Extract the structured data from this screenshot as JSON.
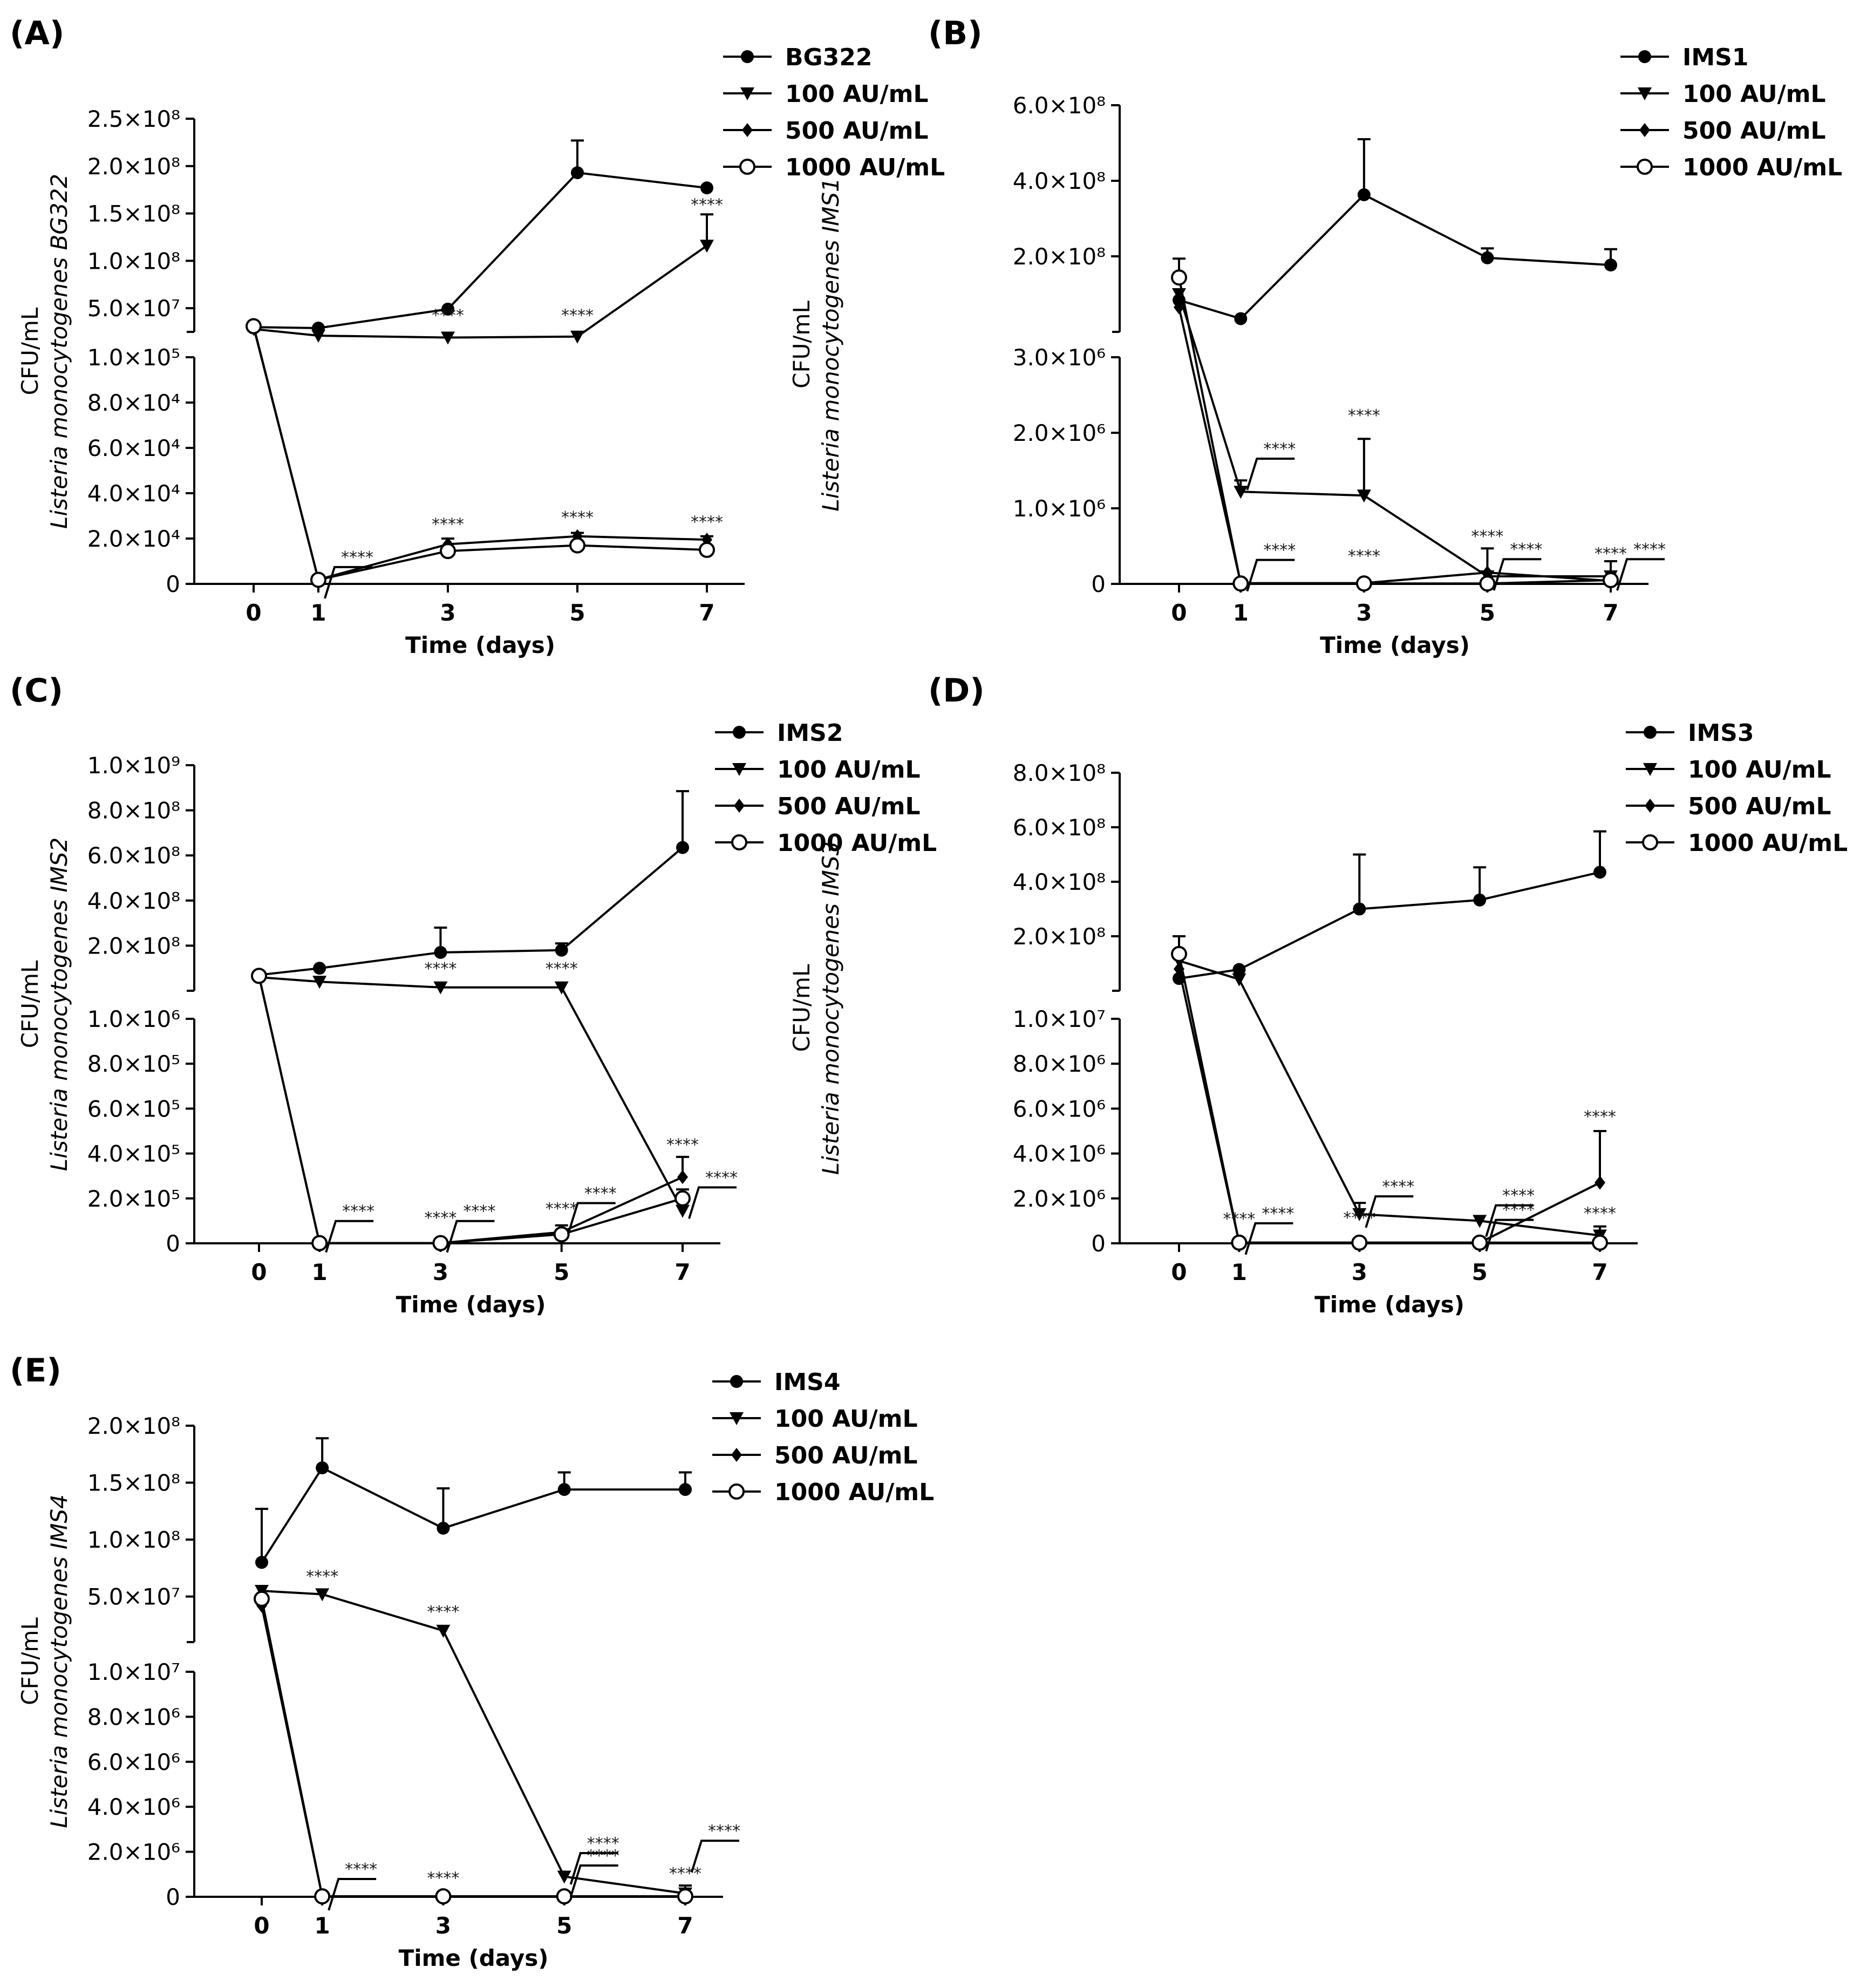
{
  "chart_data": [
    {
      "id": "A",
      "panel_label": "(A)",
      "type": "line",
      "xlabel": "Time (days)",
      "ylabel_text": "CFU/mL",
      "ylabel_species": "Listeria monocytogenes BG322",
      "x": [
        0,
        1,
        3,
        5,
        7
      ],
      "x_ticks": [
        "0",
        "1",
        "3",
        "5",
        "7"
      ],
      "axis_break": true,
      "upper_ylim": [
        25000000.0,
        250000000.0
      ],
      "upper_ticks": [
        {
          "value": 50000000.0,
          "label": "5.0×10⁷"
        },
        {
          "value": 100000000.0,
          "label": "1.0×10⁸"
        },
        {
          "value": 150000000.0,
          "label": "1.5×10⁸"
        },
        {
          "value": 200000000.0,
          "label": "2.0×10⁸"
        },
        {
          "value": 250000000.0,
          "label": "2.5×10⁸"
        }
      ],
      "lower_ylim": [
        0,
        100000.0
      ],
      "lower_ticks": [
        {
          "value": 0,
          "label": "0"
        },
        {
          "value": 20000.0,
          "label": "2.0×10⁴"
        },
        {
          "value": 40000.0,
          "label": "4.0×10⁴"
        },
        {
          "value": 60000.0,
          "label": "6.0×10⁴"
        },
        {
          "value": 80000.0,
          "label": "8.0×10⁴"
        },
        {
          "value": 100000.0,
          "label": "1.0×10⁵"
        }
      ],
      "series": [
        {
          "name": "BG322",
          "marker": "circle",
          "values": [
            30000000.0,
            29000000.0,
            49000000.0,
            193000000.0,
            177000000.0
          ],
          "err": [
            0,
            0,
            0,
            34000000.0,
            0
          ]
        },
        {
          "name": "100 AU/mL",
          "marker": "triangle",
          "values": [
            28000000.0,
            21000000.0,
            19000000.0,
            20000000.0,
            116000000.0
          ],
          "err": [
            0,
            0,
            0,
            0,
            33000000.0
          ]
        },
        {
          "name": "500 AU/mL",
          "marker": "diamond",
          "values": [
            30000000.0,
            1900.0,
            17500.0,
            21000.0,
            19500.0
          ],
          "err": [
            0,
            0,
            2500.0,
            1500.0,
            1500.0
          ]
        },
        {
          "name": "1000 AU/mL",
          "marker": "open-circle",
          "values": [
            31000000.0,
            1800.0,
            14500.0,
            17000.0,
            15000.0
          ],
          "err": [
            0,
            0,
            0,
            0,
            0
          ]
        }
      ],
      "significance": [
        {
          "x": 7,
          "value": 149000000.0,
          "label": "****"
        },
        {
          "x": 3,
          "value": 32000000.0,
          "label": "****"
        },
        {
          "x": 5,
          "value": 32000000.0,
          "label": "****"
        },
        {
          "x": 1,
          "value": 5500.0,
          "label": "****",
          "bracket": true
        },
        {
          "x": 3,
          "value": 22000.0,
          "label": "****"
        },
        {
          "x": 5,
          "value": 25000.0,
          "label": "****"
        },
        {
          "x": 7,
          "value": 23000.0,
          "label": "****"
        }
      ]
    },
    {
      "id": "B",
      "panel_label": "(B)",
      "type": "line",
      "xlabel": "Time (days)",
      "ylabel_text": "CFU/mL",
      "ylabel_species": "Listeria monocytogenes IMS1",
      "x": [
        0,
        1,
        3,
        5,
        7
      ],
      "x_ticks": [
        "0",
        "1",
        "3",
        "5",
        "7"
      ],
      "axis_break": true,
      "upper_ylim": [
        0,
        600000000.0
      ],
      "upper_ticks": [
        {
          "value": 200000000.0,
          "label": "2.0×10⁸"
        },
        {
          "value": 400000000.0,
          "label": "4.0×10⁸"
        },
        {
          "value": 600000000.0,
          "label": "6.0×10⁸"
        }
      ],
      "lower_ylim": [
        0,
        3000000.0
      ],
      "lower_ticks": [
        {
          "value": 0,
          "label": "0"
        },
        {
          "value": 1000000.0,
          "label": "1.0×10⁶"
        },
        {
          "value": 2000000.0,
          "label": "2.0×10⁶"
        },
        {
          "value": 3000000.0,
          "label": "3.0×10⁶"
        }
      ],
      "series": [
        {
          "name": "IMS1",
          "marker": "circle",
          "values": [
            84000000.0,
            35000000.0,
            363000000.0,
            196000000.0,
            177000000.0
          ],
          "err": [
            0,
            0,
            147000000.0,
            25000000.0,
            42000000.0
          ]
        },
        {
          "name": "100 AU/mL",
          "marker": "triangle",
          "values": [
            100000000.0,
            1220000.0,
            1170000.0,
            100000.0,
            100000.0
          ],
          "err": [
            0,
            150000.0,
            750000.0,
            0,
            200000.0
          ]
        },
        {
          "name": "500 AU/mL",
          "marker": "diamond",
          "values": [
            65000000.0,
            10000.0,
            10000.0,
            150000.0,
            40000.0
          ],
          "err": [
            0,
            0,
            0,
            320000.0,
            0
          ]
        },
        {
          "name": "1000 AU/mL",
          "marker": "open-circle",
          "values": [
            144000000.0,
            5000.0,
            5000.0,
            5000.0,
            50000.0
          ],
          "err": [
            50000000.0,
            0,
            0,
            0,
            0
          ]
        }
      ],
      "significance": [
        {
          "x": 1,
          "value": 1600000.0,
          "label": "****",
          "bracket": true
        },
        {
          "x": 3,
          "value": 2100000.0,
          "label": "****"
        },
        {
          "x": 1,
          "value": 260000.0,
          "label": "****",
          "bracket": true
        },
        {
          "x": 3,
          "value": 240000.0,
          "label": "****"
        },
        {
          "x": 5,
          "value": 500000.0,
          "label": "****"
        },
        {
          "x": 5,
          "value": 270000.0,
          "label": "****",
          "bracket": true
        },
        {
          "x": 7,
          "value": 270000.0,
          "label": "****"
        },
        {
          "x": 7,
          "value": 270000.0,
          "label": "****",
          "bracket": true
        }
      ]
    },
    {
      "id": "C",
      "panel_label": "(C)",
      "type": "line",
      "xlabel": "Time (days)",
      "ylabel_text": "CFU/mL",
      "ylabel_species": "Listeria monocytogenes IMS2",
      "x": [
        0,
        1,
        3,
        5,
        7
      ],
      "x_ticks": [
        "0",
        "1",
        "3",
        "5",
        "7"
      ],
      "axis_break": true,
      "upper_ylim": [
        0,
        1000000000.0
      ],
      "upper_ticks": [
        {
          "value": 200000000.0,
          "label": "2.0×10⁸"
        },
        {
          "value": 400000000.0,
          "label": "4.0×10⁸"
        },
        {
          "value": 600000000.0,
          "label": "6.0×10⁸"
        },
        {
          "value": 800000000.0,
          "label": "8.0×10⁸"
        },
        {
          "value": 1000000000.0,
          "label": "1.0×10⁹"
        }
      ],
      "lower_ylim": [
        0,
        1000000.0
      ],
      "lower_ticks": [
        {
          "value": 0,
          "label": "0"
        },
        {
          "value": 200000.0,
          "label": "2.0×10⁵"
        },
        {
          "value": 400000.0,
          "label": "4.0×10⁵"
        },
        {
          "value": 600000.0,
          "label": "6.0×10⁵"
        },
        {
          "value": 800000.0,
          "label": "8.0×10⁵"
        },
        {
          "value": 1000000.0,
          "label": "1.0×10⁶"
        }
      ],
      "series": [
        {
          "name": "IMS2",
          "marker": "circle",
          "values": [
            70000000.0,
            100000000.0,
            170000000.0,
            180000000.0,
            635000000.0
          ],
          "err": [
            0,
            0,
            110000000.0,
            30000000.0,
            250000000.0
          ]
        },
        {
          "name": "100 AU/mL",
          "marker": "triangle",
          "values": [
            60000000.0,
            40000000.0,
            15000000.0,
            15000000.0,
            145000.0
          ],
          "err": [
            0,
            0,
            0,
            0,
            0
          ]
        },
        {
          "name": "500 AU/mL",
          "marker": "diamond",
          "values": [
            65000000.0,
            1000.0,
            1000.0,
            50000.0,
            295000.0
          ],
          "err": [
            0,
            0,
            0,
            30000.0,
            90000.0
          ]
        },
        {
          "name": "1000 AU/mL",
          "marker": "open-circle",
          "values": [
            66000000.0,
            1000.0,
            1000.0,
            40000.0,
            200000.0
          ],
          "err": [
            0,
            0,
            0,
            0,
            40000.0
          ]
        }
      ],
      "significance": [
        {
          "x": 3,
          "value": 55000000.0,
          "label": "****"
        },
        {
          "x": 5,
          "value": 55000000.0,
          "label": "****"
        },
        {
          "x": 1,
          "value": 80000.0,
          "label": "****",
          "bracket": true
        },
        {
          "x": 3,
          "value": 70000.0,
          "label": "****"
        },
        {
          "x": 3,
          "value": 80000.0,
          "label": "****",
          "bracket": true
        },
        {
          "x": 5,
          "value": 110000.0,
          "label": "****"
        },
        {
          "x": 5,
          "value": 160000.0,
          "label": "****",
          "bracket": true
        },
        {
          "x": 7,
          "value": 395000.0,
          "label": "****"
        },
        {
          "x": 7,
          "value": 230000.0,
          "label": "****",
          "bracket": true
        }
      ]
    },
    {
      "id": "D",
      "panel_label": "(D)",
      "type": "line",
      "xlabel": "Time (days)",
      "ylabel_text": "CFU/mL",
      "ylabel_species": "Listeria monocytogenes IMS3",
      "x": [
        0,
        1,
        3,
        5,
        7
      ],
      "x_ticks": [
        "0",
        "1",
        "3",
        "5",
        "7"
      ],
      "axis_break": true,
      "upper_ylim": [
        0,
        800000000.0
      ],
      "upper_ticks": [
        {
          "value": 200000000.0,
          "label": "2.0×10⁸"
        },
        {
          "value": 400000000.0,
          "label": "4.0×10⁸"
        },
        {
          "value": 600000000.0,
          "label": "6.0×10⁸"
        },
        {
          "value": 800000000.0,
          "label": "8.0×10⁸"
        }
      ],
      "lower_ylim": [
        0,
        10000000.0
      ],
      "lower_ticks": [
        {
          "value": 0,
          "label": "0"
        },
        {
          "value": 2000000.0,
          "label": "2.0×10⁶"
        },
        {
          "value": 4000000.0,
          "label": "4.0×10⁶"
        },
        {
          "value": 6000000.0,
          "label": "6.0×10⁶"
        },
        {
          "value": 8000000.0,
          "label": "8.0×10⁶"
        },
        {
          "value": 10000000.0,
          "label": "1.0×10⁷"
        }
      ],
      "series": [
        {
          "name": "IMS3",
          "marker": "circle",
          "values": [
            45000000.0,
            78000000.0,
            300000000.0,
            333000000.0,
            435000000.0
          ],
          "err": [
            0,
            0,
            200000000.0,
            120000000.0,
            150000000.0
          ]
        },
        {
          "name": "100 AU/mL",
          "marker": "triangle",
          "values": [
            110000000.0,
            42000000.0,
            1300000.0,
            1000000.0,
            350000.0
          ],
          "err": [
            0,
            0,
            500000.0,
            0,
            400000.0
          ]
        },
        {
          "name": "500 AU/mL",
          "marker": "diamond",
          "values": [
            80000000.0,
            30000.0,
            30000.0,
            30000.0,
            2700000.0
          ],
          "err": [
            120000000.0,
            0,
            0,
            0,
            2300000.0
          ]
        },
        {
          "name": "1000 AU/mL",
          "marker": "open-circle",
          "values": [
            135000000.0,
            30000.0,
            30000.0,
            30000.0,
            30000.0
          ],
          "err": [
            0,
            0,
            0,
            0,
            0
          ]
        }
      ],
      "significance": [
        {
          "x": 1,
          "value": 700000.0,
          "label": "****",
          "bracket": true
        },
        {
          "x": 1,
          "value": 650000.0,
          "label": "****"
        },
        {
          "x": 3,
          "value": 700000.0,
          "label": "****"
        },
        {
          "x": 3,
          "value": 1900000.0,
          "label": "****",
          "bracket": true
        },
        {
          "x": 5,
          "value": 1500000.0,
          "label": "****",
          "bracket": true
        },
        {
          "x": 5,
          "value": 850000.0,
          "label": "****",
          "bracket": true
        },
        {
          "x": 7,
          "value": 5200000.0,
          "label": "****"
        },
        {
          "x": 7,
          "value": 900000.0,
          "label": "****"
        }
      ]
    },
    {
      "id": "E",
      "panel_label": "(E)",
      "type": "line",
      "xlabel": "Time (days)",
      "ylabel_text": "CFU/mL",
      "ylabel_species": "Listeria monocytogenes IMS4",
      "x": [
        0,
        1,
        3,
        5,
        7
      ],
      "x_ticks": [
        "0",
        "1",
        "3",
        "5",
        "7"
      ],
      "axis_break": true,
      "upper_ylim": [
        10000000.0,
        200000000.0
      ],
      "upper_ticks": [
        {
          "value": 50000000.0,
          "label": "5.0×10⁷"
        },
        {
          "value": 100000000.0,
          "label": "1.0×10⁸"
        },
        {
          "value": 150000000.0,
          "label": "1.5×10⁸"
        },
        {
          "value": 200000000.0,
          "label": "2.0×10⁸"
        }
      ],
      "lower_ylim": [
        0,
        10000000.0
      ],
      "lower_ticks": [
        {
          "value": 0,
          "label": "0"
        },
        {
          "value": 2000000.0,
          "label": "2.0×10⁶"
        },
        {
          "value": 4000000.0,
          "label": "4.0×10⁶"
        },
        {
          "value": 6000000.0,
          "label": "6.0×10⁶"
        },
        {
          "value": 8000000.0,
          "label": "8.0×10⁶"
        },
        {
          "value": 10000000.0,
          "label": "1.0×10⁷"
        }
      ],
      "series": [
        {
          "name": "IMS4",
          "marker": "circle",
          "values": [
            80000000.0,
            163000000.0,
            110000000.0,
            144000000.0,
            144000000.0
          ],
          "err": [
            47000000.0,
            26000000.0,
            35000000.0,
            15000000.0,
            15000000.0
          ]
        },
        {
          "name": "100 AU/mL",
          "marker": "triangle",
          "values": [
            55000000.0,
            52000000.0,
            20000000.0,
            900000.0,
            150000.0
          ],
          "err": [
            0,
            0,
            0,
            0,
            350000.0
          ]
        },
        {
          "name": "500 AU/mL",
          "marker": "diamond",
          "values": [
            42000000.0,
            20000.0,
            20000.0,
            20000.0,
            20000.0
          ],
          "err": [
            0,
            0,
            0,
            0,
            0
          ]
        },
        {
          "name": "1000 AU/mL",
          "marker": "open-circle",
          "values": [
            48000000.0,
            20000.0,
            20000.0,
            20000.0,
            20000.0
          ],
          "err": [
            0,
            0,
            0,
            0,
            0
          ]
        }
      ],
      "significance": [
        {
          "x": 1,
          "value": 59000000.0,
          "label": "****"
        },
        {
          "x": 3,
          "value": 28000000.0,
          "label": "****"
        },
        {
          "x": 1,
          "value": 600000.0,
          "label": "****",
          "bracket": true
        },
        {
          "x": 3,
          "value": 400000.0,
          "label": "****"
        },
        {
          "x": 5,
          "value": 1750000.0,
          "label": "****",
          "bracket": true
        },
        {
          "x": 5,
          "value": 1200000.0,
          "label": "****",
          "bracket": true
        },
        {
          "x": 7,
          "value": 2300000.0,
          "label": "****",
          "bracket": true
        },
        {
          "x": 7,
          "value": 600000.0,
          "label": "****"
        }
      ]
    }
  ]
}
